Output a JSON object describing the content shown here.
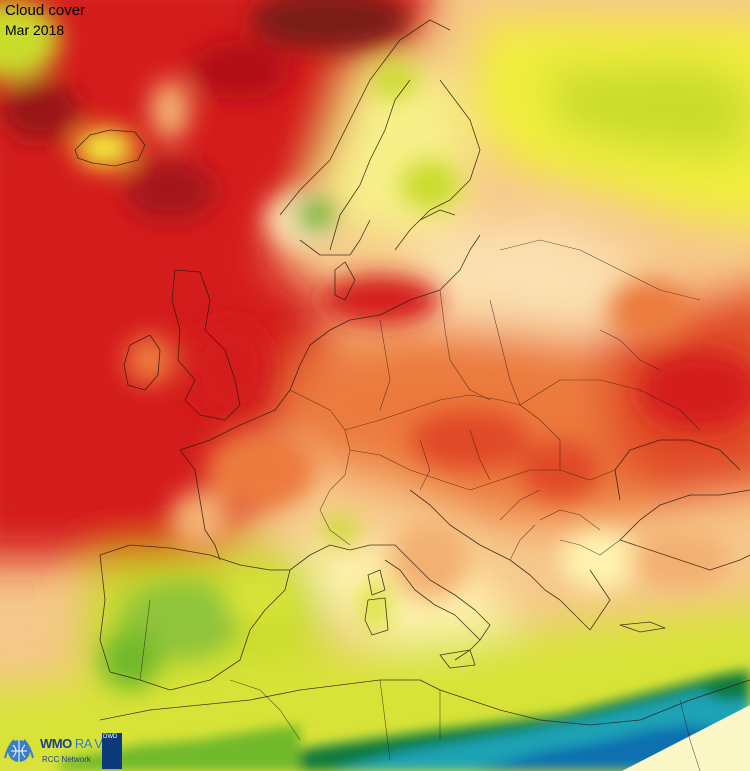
{
  "map": {
    "title": "Cloud cover",
    "subtitle": "Mar 2018",
    "region": "Europe",
    "palette": [
      "#0a6fb0",
      "#1fa3b5",
      "#0f7a3c",
      "#6fb92c",
      "#c9dc2a",
      "#f2ef3c",
      "#fff3b0",
      "#fbe0b0",
      "#f3b071",
      "#ec7a3e",
      "#e04a25",
      "#d41a1a",
      "#b31018",
      "#6b1a14"
    ]
  },
  "logo": {
    "org_text": "WMO",
    "region_text": "RA VI",
    "network_text": "RCC Network",
    "badge_text": "DWD",
    "emblem_icon": "wmo-emblem-icon"
  }
}
